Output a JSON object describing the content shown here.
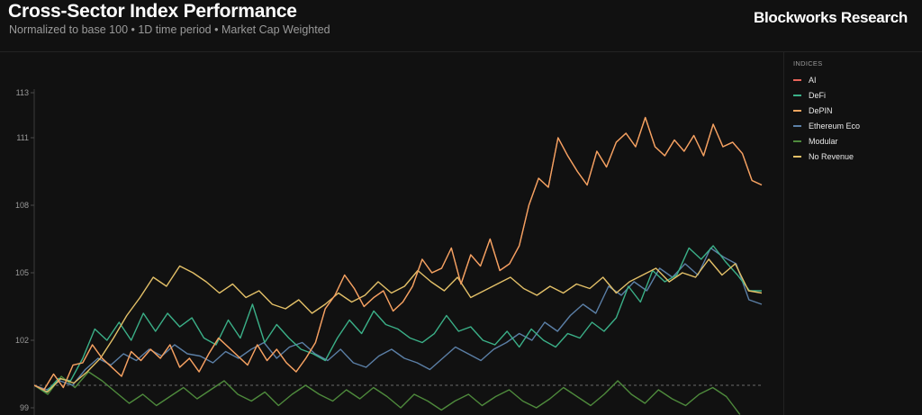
{
  "header": {
    "title": "Cross-Sector Index Performance",
    "subtitle": "Normalized to base 100 • 1D time period • Market Cap Weighted",
    "brand": "Blockworks Research"
  },
  "legend": {
    "title": "INDICES"
  },
  "chart_data": {
    "type": "line",
    "title": "Cross-Sector Index Performance",
    "subtitle": "Normalized to base 100 • 1D time period • Market Cap Weighted",
    "ylim": [
      99,
      113
    ],
    "yticks": [
      99,
      102,
      105,
      108,
      111,
      113
    ],
    "baseline": 100,
    "legend_position": "right",
    "grid": false,
    "series": [
      {
        "name": "AI",
        "color": "#e8645a",
        "values": [
          100.0,
          99.8,
          100.5,
          99.9,
          100.9,
          101.0,
          101.8,
          101.2,
          100.8,
          100.4,
          101.5,
          101.1,
          101.6,
          101.2,
          101.8,
          100.8,
          101.2,
          100.6,
          101.4,
          102.1,
          101.7,
          101.3,
          100.9,
          101.8,
          101.1,
          101.6,
          101.0,
          100.6,
          101.2,
          101.9,
          103.4,
          104.0,
          104.9,
          104.3,
          103.5,
          103.9,
          104.2,
          103.3,
          103.7,
          104.4,
          105.6,
          105.0,
          105.2,
          106.1,
          104.5,
          105.8,
          105.3,
          106.5,
          105.1,
          105.4,
          106.2,
          108.0,
          109.2,
          108.8,
          111.0,
          110.2,
          109.5,
          108.9,
          110.4,
          109.7,
          110.8,
          111.2,
          110.6,
          111.9,
          110.6,
          110.2,
          110.9,
          110.4,
          111.1,
          110.2,
          111.6,
          110.6,
          110.8,
          110.3,
          109.1,
          108.9
        ]
      },
      {
        "name": "DeFi",
        "color": "#3bb088",
        "values": [
          100.0,
          99.7,
          100.3,
          100.2,
          101.2,
          102.5,
          102.0,
          102.8,
          102.0,
          103.2,
          102.4,
          103.2,
          102.6,
          103.0,
          102.1,
          101.8,
          102.9,
          102.1,
          103.6,
          101.9,
          102.7,
          102.1,
          101.6,
          101.4,
          101.1,
          102.1,
          102.9,
          102.3,
          103.3,
          102.7,
          102.5,
          102.1,
          101.9,
          102.3,
          103.1,
          102.4,
          102.6,
          102.0,
          101.8,
          102.4,
          101.7,
          102.5,
          102.0,
          101.7,
          102.3,
          102.1,
          102.8,
          102.4,
          103.0,
          104.4,
          103.7,
          105.1,
          104.6,
          104.9,
          106.1,
          105.6,
          106.2,
          105.5,
          104.9,
          104.2,
          104.2
        ]
      },
      {
        "name": "DePIN",
        "color": "#f0a560",
        "values": [
          100.0,
          99.8,
          100.5,
          99.9,
          100.9,
          101.0,
          101.8,
          101.2,
          100.8,
          100.4,
          101.5,
          101.1,
          101.6,
          101.2,
          101.8,
          100.8,
          101.2,
          100.6,
          101.4,
          102.1,
          101.7,
          101.3,
          100.9,
          101.8,
          101.1,
          101.6,
          101.0,
          100.6,
          101.2,
          101.9,
          103.4,
          104.0,
          104.9,
          104.3,
          103.5,
          103.9,
          104.2,
          103.3,
          103.7,
          104.4,
          105.6,
          105.0,
          105.2,
          106.1,
          104.5,
          105.8,
          105.3,
          106.5,
          105.1,
          105.4,
          106.2,
          108.0,
          109.2,
          108.8,
          111.0,
          110.2,
          109.5,
          108.9,
          110.4,
          109.7,
          110.8,
          111.2,
          110.6,
          111.9,
          110.6,
          110.2,
          110.9,
          110.4,
          111.1,
          110.2,
          111.6,
          110.6,
          110.8,
          110.3,
          109.1,
          108.9
        ]
      },
      {
        "name": "Ethereum Eco",
        "color": "#5b7fa6",
        "values": [
          100.0,
          99.8,
          100.2,
          100.0,
          100.7,
          101.2,
          100.9,
          101.4,
          101.1,
          101.6,
          101.3,
          101.8,
          101.4,
          101.3,
          101.0,
          101.5,
          101.2,
          101.6,
          101.9,
          101.2,
          101.7,
          101.9,
          101.4,
          101.1,
          101.6,
          101.0,
          100.8,
          101.3,
          101.6,
          101.2,
          101.0,
          100.7,
          101.2,
          101.7,
          101.4,
          101.1,
          101.6,
          101.9,
          102.3,
          102.0,
          102.8,
          102.4,
          103.1,
          103.6,
          103.2,
          104.4,
          104.0,
          104.6,
          104.2,
          105.2,
          104.8,
          105.4,
          104.9,
          106.1,
          105.7,
          105.4,
          103.8,
          103.6
        ]
      },
      {
        "name": "Modular",
        "color": "#4e8a3c",
        "values": [
          100.0,
          99.6,
          100.4,
          99.9,
          100.6,
          100.2,
          99.7,
          99.2,
          99.6,
          99.1,
          99.5,
          99.9,
          99.4,
          99.8,
          100.2,
          99.6,
          99.3,
          99.7,
          99.1,
          99.6,
          100.0,
          99.6,
          99.3,
          99.8,
          99.4,
          99.9,
          99.5,
          99.0,
          99.6,
          99.3,
          98.9,
          99.3,
          99.6,
          99.1,
          99.5,
          99.8,
          99.3,
          99.0,
          99.4,
          99.9,
          99.5,
          99.1,
          99.6,
          100.2,
          99.6,
          99.2,
          99.8,
          99.4,
          99.1,
          99.6,
          99.9,
          99.5,
          98.7
        ]
      },
      {
        "name": "No Revenue",
        "color": "#e3c068",
        "values": [
          100.0,
          99.7,
          100.3,
          100.1,
          100.6,
          101.2,
          102.1,
          103.1,
          103.9,
          104.8,
          104.4,
          105.3,
          105.0,
          104.6,
          104.1,
          104.5,
          103.9,
          104.2,
          103.6,
          103.4,
          103.8,
          103.2,
          103.6,
          104.1,
          103.7,
          104.0,
          104.6,
          104.1,
          104.4,
          105.1,
          104.6,
          104.2,
          104.8,
          103.9,
          104.2,
          104.5,
          104.8,
          104.3,
          104.0,
          104.4,
          104.1,
          104.5,
          104.3,
          104.8,
          104.1,
          104.6,
          104.9,
          105.2,
          104.6,
          105.0,
          104.8,
          105.6,
          104.9,
          105.4,
          104.2,
          104.1
        ]
      }
    ]
  }
}
